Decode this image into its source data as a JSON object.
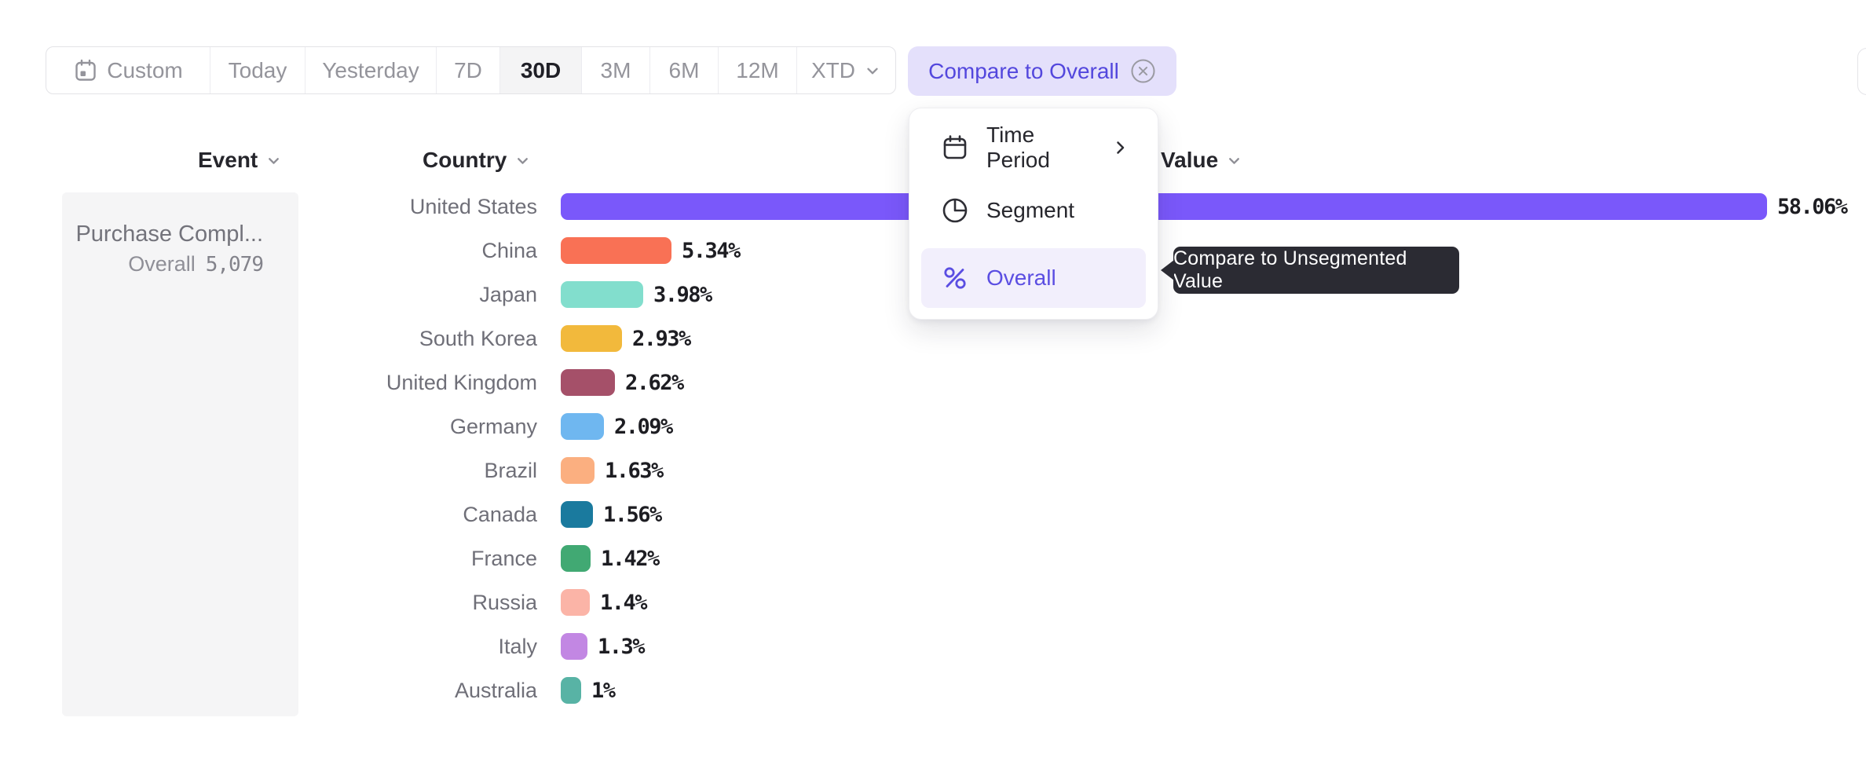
{
  "toolbar": {
    "buttons": [
      {
        "label": "Custom",
        "icon": "calendar-icon",
        "selected": false
      },
      {
        "label": "Today",
        "selected": false
      },
      {
        "label": "Yesterday",
        "selected": false
      },
      {
        "label": "7D",
        "selected": false
      },
      {
        "label": "30D",
        "selected": true
      },
      {
        "label": "3M",
        "selected": false
      },
      {
        "label": "6M",
        "selected": false
      },
      {
        "label": "12M",
        "selected": false
      },
      {
        "label": "XTD",
        "selected": false,
        "has_dropdown": true
      }
    ]
  },
  "compare_chip": {
    "label": "Compare to Overall",
    "close_icon": "circle-x-icon"
  },
  "column_headers": {
    "event": "Event",
    "country": "Country",
    "value": "Value"
  },
  "event_panel": {
    "event_name": "Purchase Compl...",
    "overall_label": "Overall",
    "overall_value": "5,079"
  },
  "dropdown_menu": {
    "items": [
      {
        "label": "Time Period",
        "icon": "calendar-icon",
        "has_submenu": true,
        "selected": false
      },
      {
        "label": "Segment",
        "icon": "segment-icon",
        "selected": false
      },
      {
        "label": "Overall",
        "icon": "percent-icon",
        "selected": true
      }
    ]
  },
  "tooltip": {
    "text": "Compare to Unsegmented Value"
  },
  "colors": {
    "accent_purple": "#5b4ee2",
    "chip_bg": "#e4e0fb",
    "chip_text": "#5347dd",
    "selected_menu_bg": "#f2effc",
    "selected_toolbar_bg": "#f4f4f5",
    "tooltip_bg": "#2b2b33"
  },
  "chart_data": {
    "type": "bar",
    "orientation": "horizontal",
    "title": "",
    "xlabel": "Value",
    "ylabel": "Country",
    "xlim": [
      0,
      58.06
    ],
    "grid": false,
    "categories": [
      "United States",
      "China",
      "Japan",
      "South Korea",
      "United Kingdom",
      "Germany",
      "Brazil",
      "Canada",
      "France",
      "Russia",
      "Italy",
      "Australia"
    ],
    "values": [
      58.06,
      5.34,
      3.98,
      2.93,
      2.62,
      2.09,
      1.63,
      1.56,
      1.42,
      1.4,
      1.3,
      1
    ],
    "value_labels": [
      "58.06%",
      "5.34%",
      "3.98%",
      "2.93%",
      "2.62%",
      "2.09%",
      "1.63%",
      "1.56%",
      "1.42%",
      "1.4%",
      "1.3%",
      "1%"
    ],
    "bar_colors": [
      "#7a58fa",
      "#f97155",
      "#82decd",
      "#f2b93c",
      "#a55069",
      "#6fb7f0",
      "#fbaf80",
      "#1a7a9e",
      "#41a973",
      "#fbb4a7",
      "#c287e3",
      "#58b3a5"
    ]
  }
}
